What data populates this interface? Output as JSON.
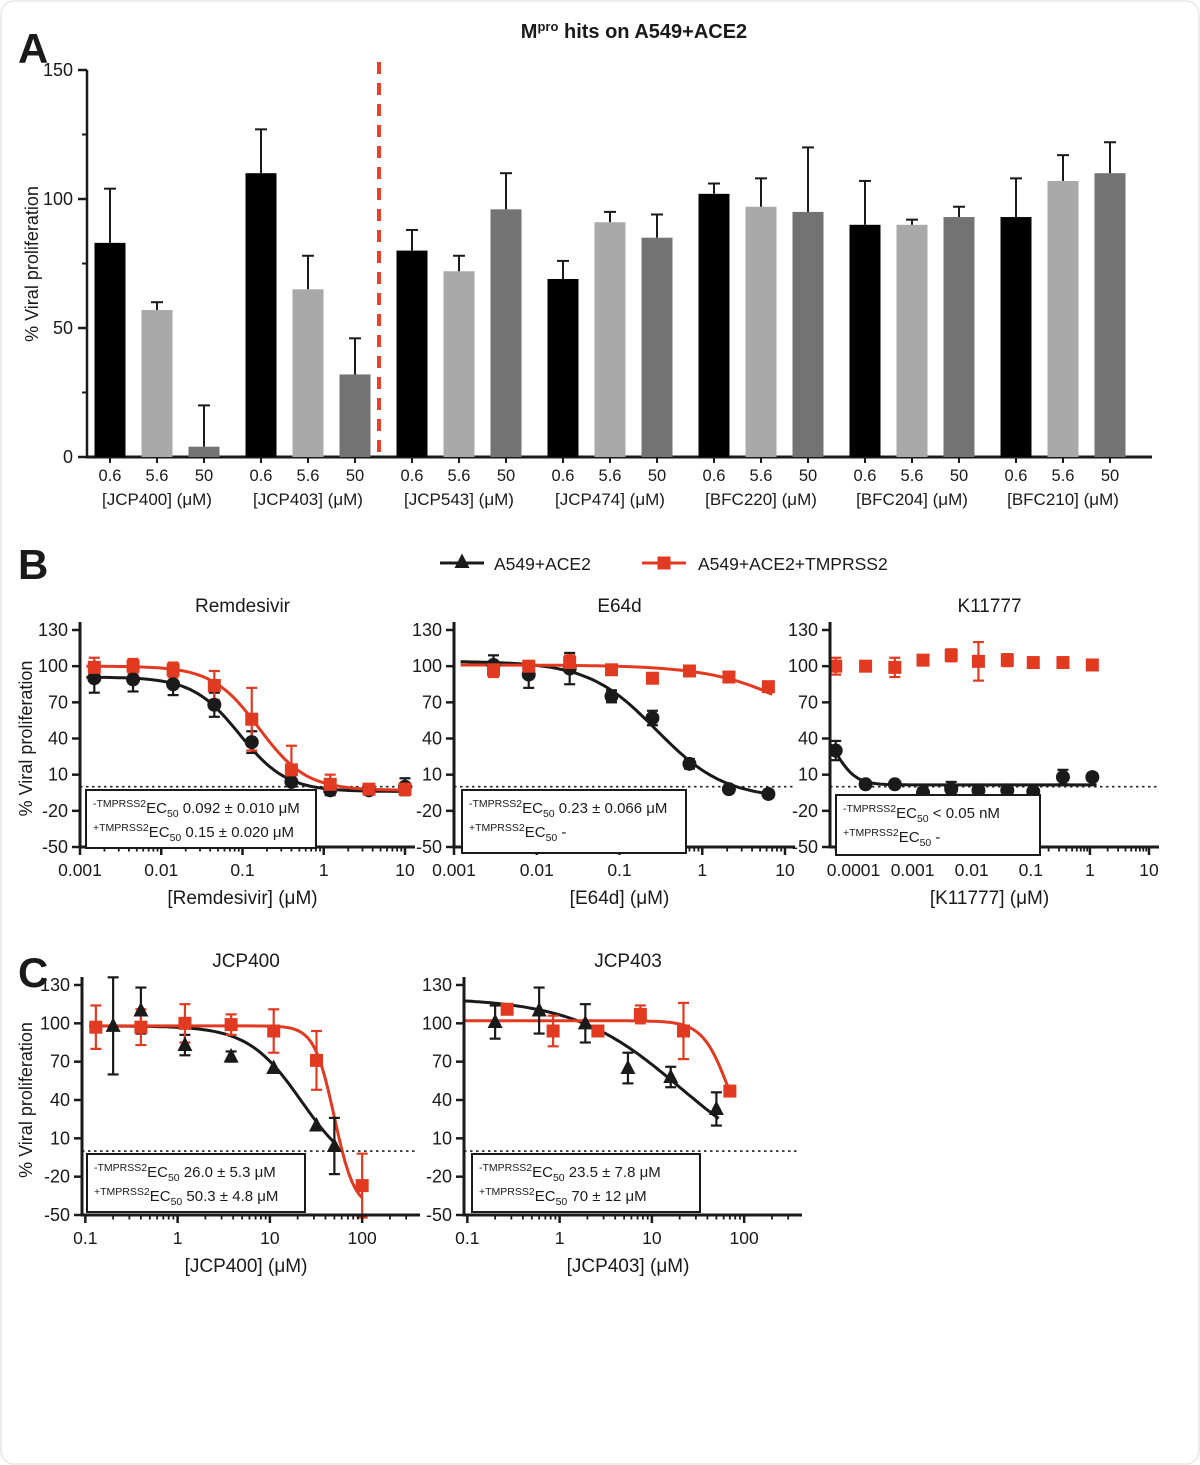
{
  "figure": {
    "panel_labels": [
      "A",
      "B",
      "C"
    ]
  },
  "legend": {
    "items": [
      {
        "label": "A549+ACE2",
        "marker": "triangle",
        "color": "#1a1a1a"
      },
      {
        "label": "A549+ACE2+TMPRSS2",
        "marker": "square",
        "color": "#e23a20"
      }
    ]
  },
  "chart_data": [
    {
      "id": "bar",
      "type": "bar",
      "title_parts": {
        "main": "M",
        "sup": "pro",
        "rest": " hits on A549+ACE2"
      },
      "ylabel": "% Viral proliferation",
      "ylim": [
        0,
        150
      ],
      "yticks": [
        0,
        50,
        100,
        150
      ],
      "yticks_minor": [
        25,
        75,
        125
      ],
      "bar_colors": [
        "#000000",
        "#a9a9a9",
        "#737373"
      ],
      "conc_labels": [
        "0.6",
        "5.6",
        "50"
      ],
      "divider_color": "#e8432a",
      "groups": [
        {
          "label": "[JCP400] (μM)",
          "values": [
            83,
            57,
            4
          ],
          "errors": [
            21,
            3,
            16
          ]
        },
        {
          "label": "[JCP403] (μM)",
          "values": [
            110,
            65,
            32
          ],
          "errors": [
            17,
            13,
            14
          ]
        },
        {
          "label": "[JCP543] (μM)",
          "values": [
            80,
            72,
            96
          ],
          "errors": [
            8,
            6,
            14
          ]
        },
        {
          "label": "[JCP474] (μM)",
          "values": [
            69,
            91,
            85
          ],
          "errors": [
            7,
            4,
            9
          ]
        },
        {
          "label": "[BFC220] (μM)",
          "values": [
            102,
            97,
            95
          ],
          "errors": [
            4,
            11,
            25
          ]
        },
        {
          "label": "[BFC204] (μM)",
          "values": [
            90,
            90,
            93
          ],
          "errors": [
            17,
            2,
            4
          ]
        },
        {
          "label": "[BFC210] (μM)",
          "values": [
            93,
            107,
            110
          ],
          "errors": [
            15,
            10,
            12
          ]
        }
      ]
    },
    {
      "id": "remdesivir",
      "type": "scatter",
      "title": "Remdesivir",
      "xlabel": "[Remdesivir] (μM)",
      "ylabel": "% Viral proliferation",
      "show_ylabel": true,
      "xlim": [
        0.001,
        10
      ],
      "ylim": [
        -50,
        130
      ],
      "xticks": [
        0.001,
        0.01,
        0.1,
        1,
        10
      ],
      "xtick_labels": [
        "0.001",
        "0.01",
        "0.1",
        "1",
        "10"
      ],
      "yticks": [
        130,
        100,
        70,
        40,
        10,
        -20,
        -50
      ],
      "zero_line": 0,
      "series": [
        {
          "name": "A549+ACE2",
          "color": "#1a1a1a",
          "marker": "circle",
          "x": [
            0.0015,
            0.0045,
            0.014,
            0.045,
            0.13,
            0.4,
            1.2,
            3.6,
            10
          ],
          "y": [
            90,
            89,
            85,
            68,
            37,
            4,
            -3,
            -3,
            0
          ],
          "yerr": [
            12,
            10,
            9,
            10,
            9,
            9,
            4,
            3,
            7
          ],
          "fit": {
            "top": 91,
            "bottom": -4,
            "ec50": 0.092,
            "hill": 1.5,
            "range": [
              0.0012,
              10
            ]
          }
        },
        {
          "name": "A549+ACE2+TMPRSS2",
          "color": "#e23a20",
          "marker": "square",
          "x": [
            0.0015,
            0.0045,
            0.014,
            0.045,
            0.13,
            0.4,
            1.2,
            3.6,
            10
          ],
          "y": [
            99,
            100,
            97,
            84,
            56,
            14,
            2,
            -2,
            -2
          ],
          "yerr": [
            8,
            6,
            6,
            12,
            26,
            20,
            8,
            3,
            5
          ],
          "fit": {
            "top": 100,
            "bottom": -3,
            "ec50": 0.16,
            "hill": 1.5,
            "range": [
              0.0012,
              10
            ]
          }
        }
      ],
      "ec50_box": {
        "ec": "EC",
        "sub": "50",
        "rows": [
          {
            "prefix": "-TMPRSS2",
            "value": "0.092 ± 0.010 μM"
          },
          {
            "prefix": "+TMPRSS2",
            "value": "0.15 ± 0.020 μM"
          }
        ]
      }
    },
    {
      "id": "e64d",
      "type": "scatter",
      "title": "E64d",
      "xlabel": "[E64d] (μM)",
      "show_ylabel": false,
      "xlim": [
        0.001,
        10
      ],
      "ylim": [
        -50,
        130
      ],
      "xticks": [
        0.001,
        0.01,
        0.1,
        1,
        10
      ],
      "xtick_labels": [
        "0.001",
        "0.01",
        "0.1",
        "1",
        "10"
      ],
      "yticks": [
        130,
        100,
        70,
        40,
        10,
        -20,
        -50
      ],
      "zero_line": 0,
      "series": [
        {
          "name": "A549+ACE2",
          "color": "#1a1a1a",
          "marker": "circle",
          "x": [
            0.003,
            0.008,
            0.025,
            0.08,
            0.25,
            0.7,
            2.1,
            6.3
          ],
          "y": [
            101,
            93,
            98,
            75,
            57,
            19,
            -2,
            -6
          ],
          "yerr": [
            8,
            11,
            13,
            5,
            6,
            4,
            3,
            3
          ],
          "fit": {
            "top": 104,
            "bottom": -10,
            "ec50": 0.28,
            "hill": 1.05,
            "range": [
              0.0012,
              7
            ]
          }
        },
        {
          "name": "A549+ACE2+TMPRSS2",
          "color": "#e23a20",
          "marker": "square",
          "x": [
            0.003,
            0.008,
            0.025,
            0.08,
            0.25,
            0.7,
            2.1,
            6.3
          ],
          "y": [
            97,
            100,
            103,
            97,
            90,
            96,
            91,
            83
          ],
          "yerr": [
            6,
            4,
            6,
            4,
            4,
            4,
            4,
            4
          ],
          "fit": {
            "top": 101,
            "bottom": 20,
            "ec50": 20,
            "hill": 0.8,
            "range": [
              0.0012,
              7
            ]
          }
        }
      ],
      "ec50_box": {
        "ec": "EC",
        "sub": "50",
        "rows": [
          {
            "prefix": "-TMPRSS2",
            "value": "0.23 ± 0.066 μM"
          },
          {
            "prefix": "+TMPRSS2",
            "value": "-"
          }
        ]
      }
    },
    {
      "id": "k11777",
      "type": "scatter",
      "title": "K11777",
      "xlabel": "[K11777] (μM)",
      "show_ylabel": false,
      "xlim": [
        4e-05,
        10
      ],
      "ylim": [
        -50,
        130
      ],
      "xticks": [
        0.0001,
        0.001,
        0.01,
        0.1,
        1,
        10
      ],
      "xtick_labels": [
        "0.0001",
        "0.001",
        "0.01",
        "0.1",
        "1",
        "10"
      ],
      "yticks": [
        130,
        100,
        70,
        40,
        10,
        -20,
        -50
      ],
      "zero_line": 0,
      "series": [
        {
          "name": "A549+ACE2",
          "color": "#1a1a1a",
          "marker": "circle",
          "x": [
            5e-05,
            0.00016,
            0.0005,
            0.0015,
            0.0045,
            0.013,
            0.04,
            0.11,
            0.35,
            1.1
          ],
          "y": [
            30,
            2,
            2,
            -5,
            -2,
            -3,
            -3,
            -4,
            8,
            8
          ],
          "yerr": [
            8,
            2,
            2,
            4,
            6,
            3,
            2,
            2,
            6,
            3
          ],
          "fit": {
            "top": 55,
            "bottom": 1.5,
            "ec50": 5e-05,
            "hill": 2.5,
            "range": [
              4e-05,
              1.3
            ]
          }
        },
        {
          "name": "A549+ACE2+TMPRSS2",
          "color": "#e23a20",
          "marker": "square",
          "x": [
            5e-05,
            0.00016,
            0.0005,
            0.0015,
            0.0045,
            0.013,
            0.04,
            0.11,
            0.35,
            1.1
          ],
          "y": [
            100,
            100,
            99,
            105,
            109,
            104,
            105,
            103,
            103,
            101
          ],
          "yerr": [
            7,
            3,
            8,
            4,
            5,
            16,
            5,
            3,
            4,
            4
          ],
          "fit": null
        }
      ],
      "ec50_box": {
        "ec": "EC",
        "sub": "50",
        "rows": [
          {
            "prefix": "-TMPRSS2",
            "value": "< 0.05 nM"
          },
          {
            "prefix": "+TMPRSS2",
            "value": "-"
          }
        ]
      }
    },
    {
      "id": "jcp400",
      "type": "scatter",
      "title": "JCP400",
      "xlabel": "[JCP400] (μM)",
      "ylabel": "% Viral proliferation",
      "show_ylabel": true,
      "xlim": [
        0.092,
        330
      ],
      "ylim": [
        -50,
        130
      ],
      "xticks": [
        0.1,
        1,
        10,
        100
      ],
      "xtick_labels": [
        "0.1",
        "1",
        "10",
        "100"
      ],
      "yticks": [
        130,
        100,
        70,
        40,
        10,
        -20,
        -50
      ],
      "zero_line": 0,
      "series": [
        {
          "name": "A549+ACE2",
          "color": "#1a1a1a",
          "marker": "triangle",
          "x": [
            0.2,
            0.4,
            1.2,
            3.8,
            11,
            32,
            50
          ],
          "y": [
            98,
            110,
            83,
            74,
            65,
            20,
            4
          ],
          "yerr": [
            38,
            18,
            8,
            4,
            0,
            0,
            22
          ],
          "fit": {
            "top": 98,
            "bottom": -20,
            "ec50": 22,
            "hill": 1.5,
            "range": [
              0.11,
              53
            ]
          }
        },
        {
          "name": "A549+ACE2+TMPRSS2",
          "color": "#e23a20",
          "marker": "square",
          "x": [
            0.13,
            0.4,
            1.2,
            3.8,
            11,
            32,
            100
          ],
          "y": [
            97,
            97,
            100,
            99,
            94,
            71,
            -27
          ],
          "yerr": [
            17,
            14,
            15,
            8,
            17,
            23,
            25
          ],
          "fit": {
            "top": 98,
            "bottom": -45,
            "ec50": 50,
            "hill": 4,
            "range": [
              0.11,
              100
            ]
          }
        }
      ],
      "ec50_box": {
        "ec": "EC",
        "sub": "50",
        "rows": [
          {
            "prefix": "-TMPRSS2",
            "value": "26.0 ± 5.3 μM"
          },
          {
            "prefix": "+TMPRSS2",
            "value": "50.3 ± 4.8 μM"
          }
        ]
      }
    },
    {
      "id": "jcp403",
      "type": "scatter",
      "title": "JCP403",
      "xlabel": "[JCP403] (μM)",
      "show_ylabel": false,
      "xlim": [
        0.092,
        330
      ],
      "ylim": [
        -50,
        130
      ],
      "xticks": [
        0.1,
        1,
        10,
        100
      ],
      "xtick_labels": [
        "0.1",
        "1",
        "10",
        "100"
      ],
      "yticks": [
        130,
        100,
        70,
        40,
        10,
        -20,
        -50
      ],
      "zero_line": 0,
      "series": [
        {
          "name": "A549+ACE2",
          "color": "#1a1a1a",
          "marker": "triangle",
          "x": [
            0.2,
            0.6,
            1.9,
            5.5,
            16,
            50
          ],
          "y": [
            101,
            110,
            100,
            65,
            58,
            33
          ],
          "yerr": [
            13,
            18,
            15,
            12,
            8,
            13
          ],
          "fit": {
            "top": 120,
            "bottom": -20,
            "ec50": 20,
            "hill": 0.75,
            "range": [
              0.095,
              53
            ]
          }
        },
        {
          "name": "A549+ACE2+TMPRSS2",
          "color": "#e23a20",
          "marker": "square",
          "x": [
            0.27,
            0.85,
            2.6,
            7.5,
            22,
            70
          ],
          "y": [
            111,
            94,
            94,
            107,
            94,
            47
          ],
          "yerr": [
            4,
            12,
            3,
            7,
            22,
            4
          ],
          "fit": {
            "top": 102,
            "bottom": -10,
            "ec50": 70,
            "hill": 3,
            "range": [
              0.095,
              70
            ]
          }
        }
      ],
      "ec50_box": {
        "ec": "EC",
        "sub": "50",
        "rows": [
          {
            "prefix": "-TMPRSS2",
            "value": "23.5 ± 7.8 μM"
          },
          {
            "prefix": "+TMPRSS2",
            "value": "70 ± 12 μM"
          }
        ]
      }
    }
  ]
}
